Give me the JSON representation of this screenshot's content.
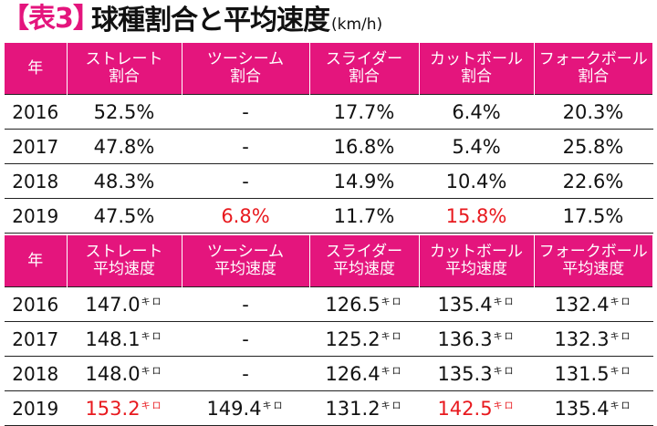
{
  "title": {
    "tag_open": "【",
    "tag_text": "表3",
    "tag_close": "】",
    "main": "球種割合と平均速度",
    "unit": "(km/h)"
  },
  "colors": {
    "accent": "#e4157d",
    "highlight_red": "#e8191e"
  },
  "table1": {
    "headers": [
      {
        "line1": "年",
        "line2": ""
      },
      {
        "line1": "ストレート",
        "line2": "割合"
      },
      {
        "line1": "ツーシーム",
        "line2": "割合"
      },
      {
        "line1": "スライダー",
        "line2": "割合"
      },
      {
        "line1": "カットボール",
        "line2": "割合"
      },
      {
        "line1": "フォークボール",
        "line2": "割合"
      }
    ],
    "rows": [
      {
        "year": "2016",
        "straight": "52.5%",
        "twoseam": "-",
        "slider": "17.7%",
        "cutter": "6.4%",
        "fork": "20.3%"
      },
      {
        "year": "2017",
        "straight": "47.8%",
        "twoseam": "-",
        "slider": "16.8%",
        "cutter": "5.4%",
        "fork": "25.8%"
      },
      {
        "year": "2018",
        "straight": "48.3%",
        "twoseam": "-",
        "slider": "14.9%",
        "cutter": "10.4%",
        "fork": "22.6%"
      },
      {
        "year": "2019",
        "straight": "47.5%",
        "twoseam": "6.8%",
        "slider": "11.7%",
        "cutter": "15.8%",
        "fork": "17.5%"
      }
    ]
  },
  "table2": {
    "headers": [
      {
        "line1": "年",
        "line2": ""
      },
      {
        "line1": "ストレート",
        "line2": "平均速度"
      },
      {
        "line1": "ツーシーム",
        "line2": "平均速度"
      },
      {
        "line1": "スライダー",
        "line2": "平均速度"
      },
      {
        "line1": "カットボール",
        "line2": "平均速度"
      },
      {
        "line1": "フォークボール",
        "line2": "平均速度"
      }
    ],
    "unit_mark": "キロ",
    "rows": [
      {
        "year": "2016",
        "straight": "147.0",
        "twoseam": "-",
        "slider": "126.5",
        "cutter": "135.4",
        "fork": "132.4"
      },
      {
        "year": "2017",
        "straight": "148.1",
        "twoseam": "-",
        "slider": "125.2",
        "cutter": "136.3",
        "fork": "132.3"
      },
      {
        "year": "2018",
        "straight": "148.0",
        "twoseam": "-",
        "slider": "126.4",
        "cutter": "135.3",
        "fork": "131.5"
      },
      {
        "year": "2019",
        "straight": "153.2",
        "twoseam": "149.4",
        "slider": "131.2",
        "cutter": "142.5",
        "fork": "135.4"
      }
    ]
  }
}
